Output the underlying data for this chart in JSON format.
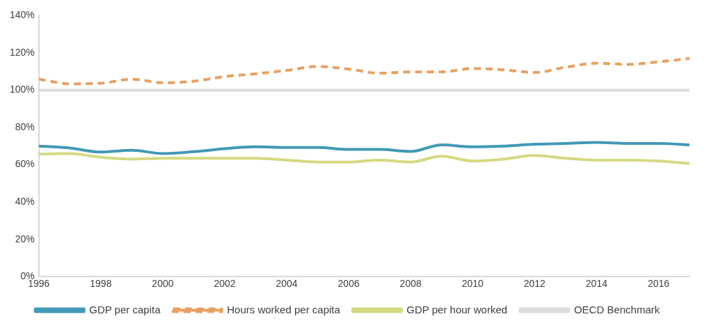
{
  "chart_data": {
    "type": "line",
    "x": [
      1996,
      1997,
      1998,
      1999,
      2000,
      2001,
      2002,
      2003,
      2004,
      2005,
      2006,
      2007,
      2008,
      2009,
      2010,
      2011,
      2012,
      2013,
      2014,
      2015,
      2016,
      2017
    ],
    "series": [
      {
        "name": "GDP per capita",
        "color": "#4299b6",
        "line_style": "solid",
        "values": [
          70,
          69,
          66.8,
          67.8,
          66,
          67,
          68.6,
          69.6,
          69.3,
          69.3,
          68.2,
          68.2,
          67.1,
          70.7,
          69.6,
          70,
          71,
          71.4,
          72,
          71.4,
          71.4,
          70.7
        ]
      },
      {
        "name": "Hours worked per capita",
        "color": "#e8a160",
        "line_style": "dashed",
        "values": [
          105.9,
          103.4,
          103.7,
          105.9,
          104,
          104.8,
          107.3,
          108.8,
          110.6,
          112.7,
          111.3,
          109.1,
          109.8,
          109.8,
          111.6,
          110.9,
          109.5,
          112.3,
          114.5,
          113.8,
          115.2,
          117
        ]
      },
      {
        "name": "GDP per hour worked",
        "color": "#d4d982",
        "line_style": "solid",
        "values": [
          65.7,
          66,
          64,
          63,
          63.5,
          63.5,
          63.5,
          63.5,
          62.5,
          61.4,
          61.4,
          62.5,
          61.4,
          64.6,
          62,
          63,
          65,
          63.5,
          62.5,
          62.5,
          62,
          60.7
        ]
      },
      {
        "name": "OECD Benchmark",
        "color": "#dcdcdc",
        "line_style": "solid",
        "values": [
          100,
          100,
          100,
          100,
          100,
          100,
          100,
          100,
          100,
          100,
          100,
          100,
          100,
          100,
          100,
          100,
          100,
          100,
          100,
          100,
          100,
          100
        ]
      }
    ],
    "xlim": [
      1996,
      2017
    ],
    "xticks": [
      1996,
      1998,
      2000,
      2002,
      2004,
      2006,
      2008,
      2010,
      2012,
      2014,
      2016
    ],
    "ylim": [
      0,
      140
    ],
    "yticks": [
      {
        "value": 0,
        "label": "0%"
      },
      {
        "value": 20,
        "label": "20%"
      },
      {
        "value": 40,
        "label": "40%"
      },
      {
        "value": 60,
        "label": "60%"
      },
      {
        "value": 80,
        "label": "80%"
      },
      {
        "value": 100,
        "label": "100%"
      },
      {
        "value": 120,
        "label": "120%"
      },
      {
        "value": 140,
        "label": "140%"
      }
    ],
    "grid": false,
    "legend": "bottom",
    "marker": "none"
  }
}
